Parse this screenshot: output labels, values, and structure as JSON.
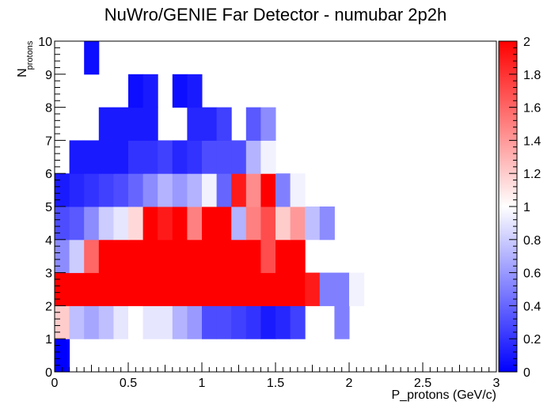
{
  "chart_data": {
    "type": "heatmap",
    "title": "NuWro/GENIE Far Detector - numubar 2p2h",
    "xlabel": "P_protons (GeV/c)",
    "ylabel_main": "N",
    "ylabel_sub": "protons",
    "xlim": [
      0,
      3
    ],
    "ylim": [
      0,
      10
    ],
    "zlim": [
      0,
      2
    ],
    "x_ticks": [
      "0",
      "0.5",
      "1",
      "1.5",
      "2",
      "2.5",
      "3"
    ],
    "y_ticks": [
      "0",
      "1",
      "2",
      "3",
      "4",
      "5",
      "6",
      "7",
      "8",
      "9",
      "10"
    ],
    "z_ticks": [
      "0",
      "0.2",
      "0.4",
      "0.6",
      "0.8",
      "1",
      "1.2",
      "1.4",
      "1.6",
      "1.8",
      "2"
    ],
    "x_bin_width": 0.1,
    "y_bin_width": 1,
    "colors": {
      "low": "#0000ff",
      "mid": "#ffffff",
      "high": "#ff0000"
    },
    "rows": [
      [
        0.0,
        null,
        null,
        null,
        null,
        null,
        null,
        null,
        null,
        null,
        null,
        null,
        null,
        null,
        null,
        null,
        null,
        null,
        null,
        null
      ],
      [
        1.2,
        0.75,
        0.65,
        0.75,
        0.9,
        1.0,
        0.9,
        0.9,
        0.7,
        0.6,
        0.3,
        0.3,
        0.25,
        0.2,
        0.1,
        0.15,
        0.25,
        null,
        null,
        0.5
      ],
      [
        2.0,
        2.0,
        2.0,
        2.0,
        2.0,
        2.0,
        2.0,
        2.0,
        2.0,
        2.0,
        2.0,
        2.0,
        2.0,
        2.0,
        2.0,
        2.0,
        2.0,
        1.9,
        0.5,
        0.5,
        0.95
      ],
      [
        0.55,
        0.8,
        1.6,
        2.0,
        2.0,
        2.0,
        2.0,
        2.0,
        2.0,
        2.0,
        2.0,
        2.0,
        2.0,
        2.0,
        1.7,
        2.0,
        2.0
      ],
      [
        0.3,
        0.35,
        0.55,
        0.8,
        0.9,
        1.15,
        2.0,
        1.9,
        2.0,
        1.5,
        2.0,
        2.0,
        0.7,
        1.5,
        1.7,
        1.2,
        1.4,
        0.75,
        0.55
      ],
      [
        0.1,
        0.15,
        0.2,
        0.25,
        0.3,
        0.4,
        0.55,
        0.7,
        0.6,
        0.7,
        0.95,
        0.4,
        1.9,
        1.45,
        2.0,
        0.5,
        0.95
      ],
      [
        null,
        0.1,
        0.1,
        0.1,
        0.1,
        0.2,
        0.2,
        0.25,
        0.15,
        0.2,
        0.3,
        0.3,
        0.3,
        0.7,
        0.95
      ],
      [
        null,
        null,
        null,
        0.1,
        0.1,
        0.1,
        0.1,
        null,
        null,
        0.15,
        0.15,
        0.25,
        null,
        0.35,
        0.55
      ],
      [
        null,
        null,
        null,
        null,
        null,
        0.05,
        0.1,
        null,
        0.05,
        0.1
      ],
      [
        null,
        null,
        0.05
      ]
    ]
  }
}
